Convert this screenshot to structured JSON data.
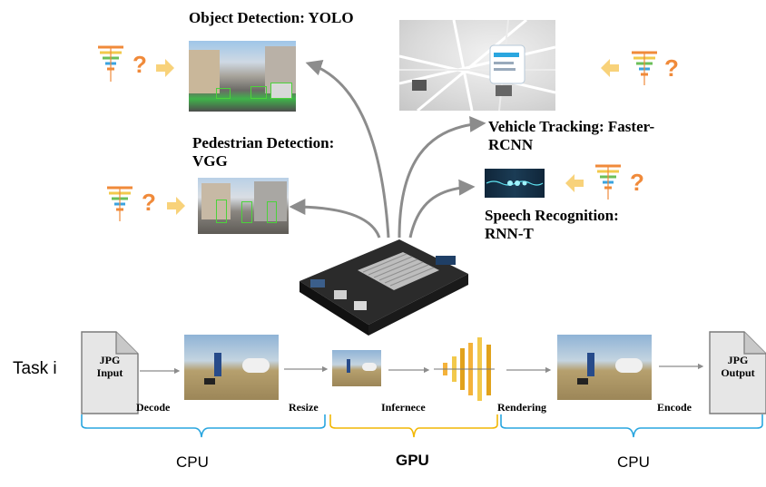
{
  "apps": {
    "object_detection": "Object Detection: YOLO",
    "pedestrian_line1": "Pedestrian Detection:",
    "pedestrian_line2": "VGG",
    "vehicle_line1": "Vehicle Tracking: Faster-",
    "vehicle_line2": "RCNN",
    "speech_line1": "Speech Recognition:",
    "speech_line2": "RNN-T"
  },
  "pipeline": {
    "task_label": "Task i",
    "input_doc_line1": "JPG",
    "input_doc_line2": "Input",
    "output_doc_line1": "JPG",
    "output_doc_line2": "Output",
    "stages": [
      "Decode",
      "Resize",
      "Infernece",
      "Rendering",
      "Encode"
    ]
  },
  "devices": {
    "cpu_left": "CPU",
    "gpu": "GPU",
    "cpu_right": "CPU"
  },
  "colors": {
    "bracket_blue": "#2aa6df",
    "bracket_yellow": "#f2b705",
    "arrow_gray": "#8c8c8c",
    "highlight_arrow": "#f8d27a",
    "question_mark": "#f08a3a"
  }
}
